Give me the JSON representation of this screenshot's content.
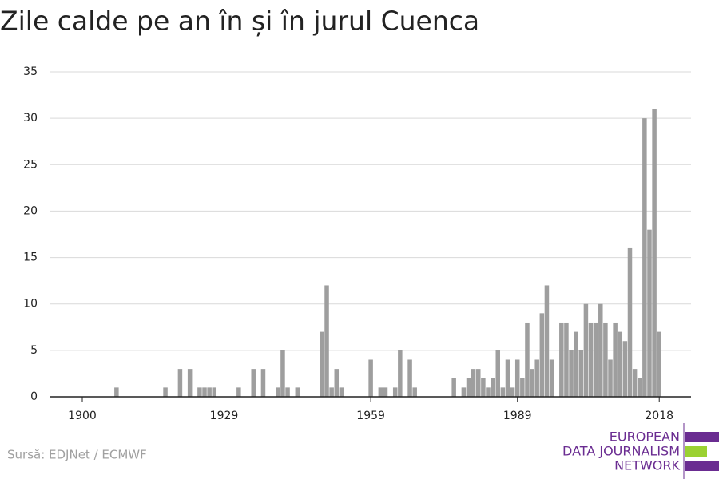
{
  "chart_data": {
    "type": "bar",
    "title": "Zile calde pe an în și în jurul Cuenca",
    "x": [
      1900,
      1901,
      1902,
      1903,
      1904,
      1905,
      1906,
      1907,
      1908,
      1909,
      1910,
      1911,
      1912,
      1913,
      1914,
      1915,
      1916,
      1917,
      1918,
      1919,
      1920,
      1921,
      1922,
      1923,
      1924,
      1925,
      1926,
      1927,
      1928,
      1929,
      1930,
      1931,
      1932,
      1933,
      1934,
      1935,
      1936,
      1937,
      1938,
      1939,
      1940,
      1941,
      1942,
      1943,
      1944,
      1945,
      1946,
      1947,
      1948,
      1949,
      1950,
      1951,
      1952,
      1953,
      1954,
      1955,
      1956,
      1957,
      1958,
      1959,
      1960,
      1961,
      1962,
      1963,
      1964,
      1965,
      1966,
      1967,
      1968,
      1969,
      1970,
      1971,
      1972,
      1973,
      1974,
      1975,
      1976,
      1977,
      1978,
      1979,
      1980,
      1981,
      1982,
      1983,
      1984,
      1985,
      1986,
      1987,
      1988,
      1989,
      1990,
      1991,
      1992,
      1993,
      1994,
      1995,
      1996,
      1997,
      1998,
      1999,
      2000,
      2001,
      2002,
      2003,
      2004,
      2005,
      2006,
      2007,
      2008,
      2009,
      2010,
      2011,
      2012,
      2013,
      2014,
      2015,
      2016,
      2017,
      2018
    ],
    "values": [
      0,
      0,
      0,
      0,
      0,
      0,
      0,
      1,
      0,
      0,
      0,
      0,
      0,
      0,
      0,
      0,
      0,
      1,
      0,
      0,
      3,
      0,
      3,
      0,
      1,
      1,
      1,
      1,
      0,
      0,
      0,
      0,
      1,
      0,
      0,
      3,
      0,
      3,
      0,
      0,
      1,
      5,
      1,
      0,
      1,
      0,
      0,
      0,
      0,
      7,
      12,
      1,
      3,
      1,
      0,
      0,
      0,
      0,
      0,
      4,
      0,
      1,
      1,
      0,
      1,
      5,
      0,
      4,
      1,
      0,
      0,
      0,
      0,
      0,
      0,
      0,
      2,
      0,
      1,
      2,
      3,
      3,
      2,
      1,
      2,
      5,
      1,
      4,
      1,
      4,
      2,
      8,
      3,
      4,
      9,
      12,
      4,
      0,
      8,
      8,
      5,
      7,
      5,
      10,
      8,
      8,
      10,
      8,
      4,
      8,
      7,
      6,
      16,
      3,
      2,
      30,
      18,
      31,
      7
    ],
    "color": "#9e9e9e",
    "xlim": [
      1893.3,
      2024.5
    ],
    "xticks": [
      1900,
      1929,
      1959,
      1989,
      2018
    ],
    "ylim": [
      0,
      35
    ],
    "yticks": [
      0,
      5,
      10,
      15,
      20,
      25,
      30,
      35
    ],
    "grid": true,
    "source": "Sursă: EDJNet / ECMWF",
    "logo": [
      "EUROPEAN",
      "DATA JOURNALISM",
      "NETWORK"
    ]
  }
}
